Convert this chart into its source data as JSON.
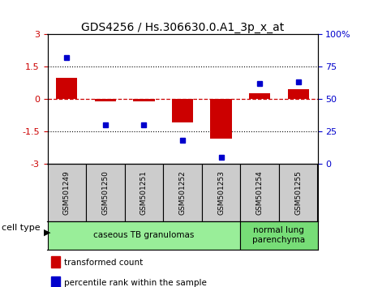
{
  "title": "GDS4256 / Hs.306630.0.A1_3p_x_at",
  "samples": [
    "GSM501249",
    "GSM501250",
    "GSM501251",
    "GSM501252",
    "GSM501253",
    "GSM501254",
    "GSM501255"
  ],
  "transformed_counts": [
    1.0,
    -0.12,
    -0.12,
    -1.1,
    -1.85,
    0.28,
    0.45
  ],
  "percentile_ranks": [
    82,
    30,
    30,
    18,
    5,
    62,
    63
  ],
  "ylim_left": [
    -3,
    3
  ],
  "ylim_right": [
    0,
    100
  ],
  "yticks_left": [
    -3,
    -1.5,
    0,
    1.5,
    3
  ],
  "yticks_right": [
    0,
    25,
    50,
    75,
    100
  ],
  "ytick_labels_left": [
    "-3",
    "-1.5",
    "0",
    "1.5",
    "3"
  ],
  "ytick_labels_right": [
    "0",
    "25",
    "50",
    "75",
    "100%"
  ],
  "hline_y": 0,
  "dotted_lines": [
    -1.5,
    1.5
  ],
  "bar_color": "#cc0000",
  "dot_color": "#0000cc",
  "cell_type_groups": [
    {
      "label": "caseous TB granulomas",
      "start": 0,
      "end": 4,
      "color": "#99ee99"
    },
    {
      "label": "normal lung\nparenchyma",
      "start": 5,
      "end": 6,
      "color": "#77dd77"
    }
  ],
  "cell_type_label": "cell type",
  "legend_items": [
    {
      "color": "#cc0000",
      "label": "transformed count"
    },
    {
      "color": "#0000cc",
      "label": "percentile rank within the sample"
    }
  ],
  "bar_width": 0.55,
  "sample_box_color": "#cccccc",
  "plot_bg": "#ffffff",
  "fig_bg": "#ffffff"
}
